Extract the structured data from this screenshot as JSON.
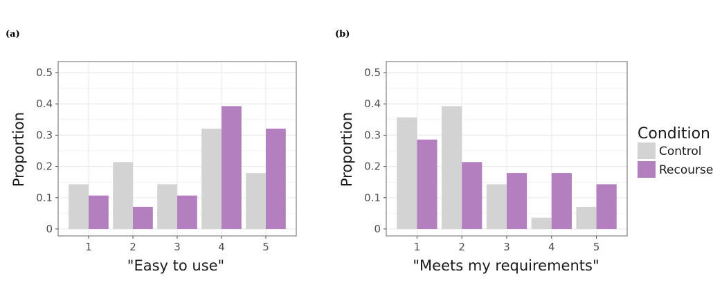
{
  "chart_data": [
    {
      "panel_label": "(a)",
      "type": "bar",
      "categories": [
        "1",
        "2",
        "3",
        "4",
        "5"
      ],
      "series": [
        {
          "name": "Control",
          "values": [
            0.143,
            0.214,
            0.143,
            0.321,
            0.179
          ]
        },
        {
          "name": "Recourse",
          "values": [
            0.107,
            0.071,
            0.107,
            0.393,
            0.321
          ]
        }
      ],
      "xlabel": "\"Easy to use\"",
      "ylabel": "Proportion",
      "ylim": [
        0,
        0.5
      ],
      "yticks": [
        "0",
        "0.1",
        "0.2",
        "0.3",
        "0.4",
        "0.5"
      ],
      "ytick_values": [
        0,
        0.1,
        0.2,
        0.3,
        0.4,
        0.5
      ],
      "grid": true
    },
    {
      "panel_label": "(b)",
      "type": "bar",
      "categories": [
        "1",
        "2",
        "3",
        "4",
        "5"
      ],
      "series": [
        {
          "name": "Control",
          "values": [
            0.357,
            0.393,
            0.143,
            0.036,
            0.071
          ]
        },
        {
          "name": "Recourse",
          "values": [
            0.286,
            0.214,
            0.179,
            0.179,
            0.143
          ]
        }
      ],
      "xlabel": "\"Meets my requirements\"",
      "ylabel": "Proportion",
      "ylim": [
        0,
        0.5
      ],
      "yticks": [
        "0",
        "0.1",
        "0.2",
        "0.3",
        "0.4",
        "0.5"
      ],
      "ytick_values": [
        0,
        0.1,
        0.2,
        0.3,
        0.4,
        0.5
      ],
      "grid": true
    }
  ],
  "legend": {
    "title": "Condition",
    "placement": "right",
    "items": [
      {
        "label": "Control",
        "color": "#d3d3d3"
      },
      {
        "label": "Recourse",
        "color": "#b37fbe"
      }
    ]
  }
}
